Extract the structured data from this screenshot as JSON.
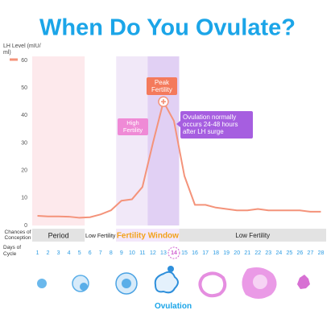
{
  "chart_data": {
    "type": "line",
    "title": "When Do You Ovulate?",
    "y_label": "LH Level (mIU/ ml)",
    "x_label": "Days of Cycle",
    "x": [
      1,
      2,
      3,
      4,
      5,
      6,
      7,
      8,
      9,
      10,
      11,
      12,
      13,
      14,
      15,
      16,
      17,
      18,
      19,
      20,
      21,
      22,
      23,
      24,
      25,
      26,
      27,
      28
    ],
    "series": [
      {
        "color": "#f4937a",
        "values": [
          3.5,
          3.3,
          3.3,
          3.2,
          2.8,
          3,
          4,
          5.5,
          9,
          9.5,
          14,
          30,
          45,
          38,
          18,
          7.5,
          7.5,
          6.5,
          6,
          5.5,
          5.5,
          6,
          5.5,
          5.5,
          5.5,
          5.5,
          5,
          5
        ]
      }
    ],
    "xlim": [
      0.5,
      28.5
    ],
    "ylim": [
      0,
      60
    ],
    "xticks": [
      1,
      2,
      3,
      4,
      5,
      6,
      7,
      8,
      9,
      10,
      11,
      12,
      13,
      14,
      15,
      16,
      17,
      18,
      19,
      20,
      21,
      22,
      23,
      24,
      25,
      26,
      27,
      28
    ],
    "yticks": [
      0,
      10,
      20,
      30,
      40,
      50,
      60
    ],
    "bands": [
      {
        "from": 0.5,
        "to": 5.5,
        "color": "#fde9ec"
      },
      {
        "from": 8.5,
        "to": 14.5,
        "color": "#f1e8f8"
      },
      {
        "from": 11.5,
        "to": 14.5,
        "color": "#e1d0f4"
      }
    ],
    "conception": {
      "label": "Chances of Conception",
      "segments": [
        {
          "label": "Period",
          "from": 0.5,
          "to": 5.5
        },
        {
          "label": "Low Fertility",
          "from": 5.5,
          "to": 8.5
        },
        {
          "label": "Fertility Window",
          "from": 8.5,
          "to": 14.5
        },
        {
          "label": "Low Fertility",
          "from": 14.5,
          "to": 28.5
        }
      ]
    },
    "annotations": {
      "peak": "Peak Fertility",
      "high": "High Fertility",
      "note": "Ovulation normally occurs 24-48 hours after LH surge",
      "ovulation": "Ovulation"
    }
  }
}
